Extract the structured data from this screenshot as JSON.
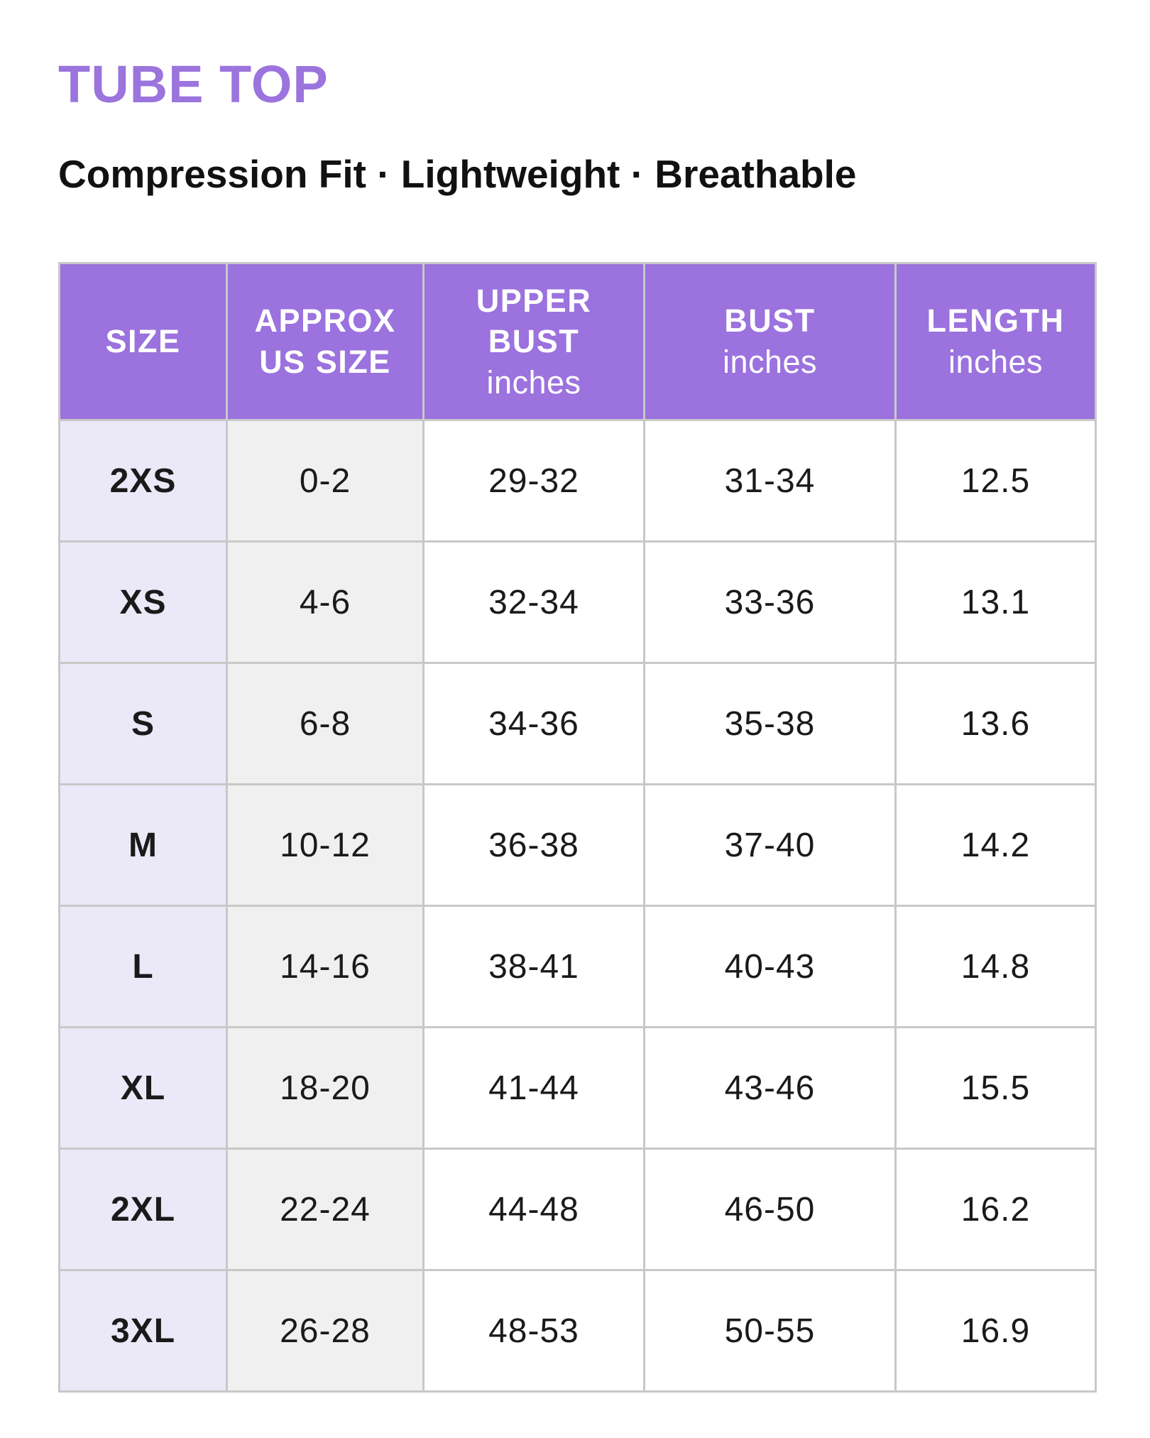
{
  "header": {
    "title": "TUBE TOP",
    "subtitle": "Compression Fit · Lightweight · Breathable"
  },
  "table": {
    "columns": [
      {
        "title": "SIZE"
      },
      {
        "title": "APPROX US SIZE"
      },
      {
        "title": "UPPER BUST",
        "unit": "inches"
      },
      {
        "title": "BUST",
        "unit": "inches"
      },
      {
        "title": "LENGTH",
        "unit": "inches"
      }
    ],
    "rows": [
      [
        "2XS",
        "0-2",
        "29-32",
        "31-34",
        "12.5"
      ],
      [
        "XS",
        "4-6",
        "32-34",
        "33-36",
        "13.1"
      ],
      [
        "S",
        "6-8",
        "34-36",
        "35-38",
        "13.6"
      ],
      [
        "M",
        "10-12",
        "36-38",
        "37-40",
        "14.2"
      ],
      [
        "L",
        "14-16",
        "38-41",
        "40-43",
        "14.8"
      ],
      [
        "XL",
        "18-20",
        "41-44",
        "43-46",
        "15.5"
      ],
      [
        "2XL",
        "22-24",
        "44-48",
        "46-50",
        "16.2"
      ],
      [
        "3XL",
        "26-28",
        "48-53",
        "50-55",
        "16.9"
      ]
    ]
  }
}
